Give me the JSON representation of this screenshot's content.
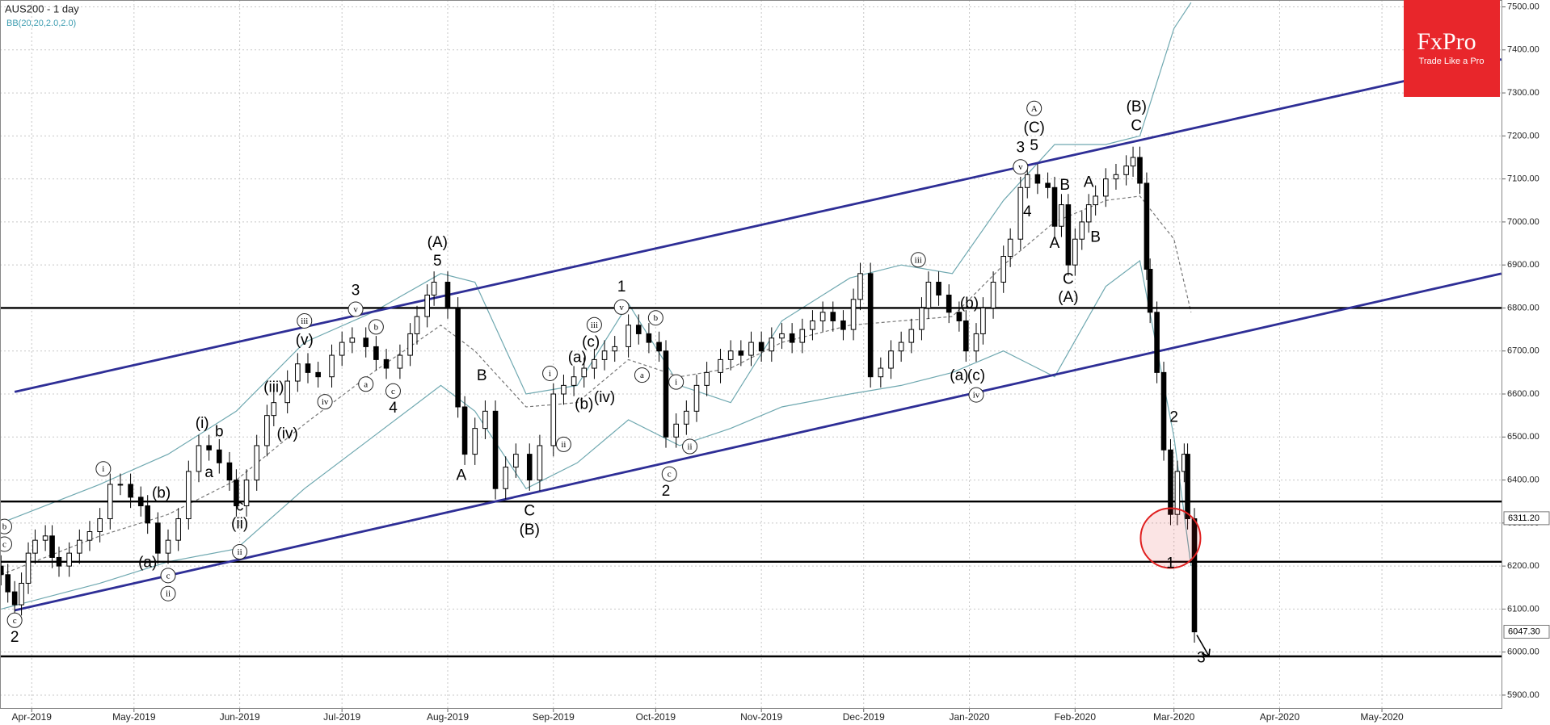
{
  "chart_data": {
    "type": "candlestick",
    "title": "AUS200 - 1 day",
    "subtitle": "BB(20,20,2.0,2.0)",
    "up_color": "#ffffff",
    "down_color": "#000000",
    "x": [
      -9,
      -7,
      -5,
      -3,
      -1,
      1,
      4,
      6,
      8,
      11,
      14,
      17,
      20,
      23,
      26,
      29,
      32,
      34,
      37,
      40,
      43,
      46,
      49,
      52,
      55,
      58,
      60,
      63,
      66,
      69,
      71,
      75,
      78,
      81,
      84,
      88,
      91,
      94,
      98,
      101,
      104,
      108,
      111,
      113,
      116,
      118,
      122,
      125,
      127,
      130,
      133,
      136,
      139,
      142,
      146,
      149,
      153,
      156,
      159,
      162,
      165,
      168,
      171,
      175,
      178,
      181,
      184,
      186,
      189,
      192,
      195,
      198,
      202,
      205,
      208,
      211,
      214,
      217,
      220,
      223,
      226,
      229,
      232,
      235,
      238,
      241,
      243,
      246,
      249,
      252,
      255,
      258,
      261,
      263,
      266,
      269,
      272,
      274,
      277,
      279,
      282,
      285,
      287,
      290,
      292,
      295,
      298,
      300,
      302,
      304,
      306,
      308,
      310,
      312,
      315,
      318,
      321,
      323,
      325,
      327,
      328,
      330,
      332,
      334,
      336,
      338,
      339,
      341
    ],
    "open": [
      6200,
      6180,
      6140,
      6110,
      6160,
      6230,
      6260,
      6270,
      6220,
      6200,
      6230,
      6260,
      6280,
      6310,
      6390,
      6390,
      6360,
      6340,
      6300,
      6230,
      6260,
      6310,
      6420,
      6480,
      6470,
      6440,
      6400,
      6340,
      6400,
      6480,
      6550,
      6580,
      6630,
      6670,
      6650,
      6640,
      6690,
      6720,
      6730,
      6710,
      6680,
      6660,
      6690,
      6740,
      6780,
      6830,
      6860,
      6800,
      6570,
      6460,
      6520,
      6560,
      6380,
      6430,
      6460,
      6400,
      6480,
      6600,
      6620,
      6640,
      6660,
      6680,
      6700,
      6710,
      6760,
      6740,
      6720,
      6700,
      6500,
      6530,
      6560,
      6620,
      6650,
      6680,
      6700,
      6690,
      6720,
      6700,
      6730,
      6740,
      6720,
      6750,
      6770,
      6790,
      6770,
      6750,
      6820,
      6880,
      6640,
      6660,
      6700,
      6720,
      6750,
      6800,
      6860,
      6830,
      6790,
      6770,
      6700,
      6740,
      6800,
      6860,
      6920,
      6960,
      7080,
      7110,
      7090,
      7080,
      6990,
      7040,
      6900,
      6960,
      7000,
      7040,
      7060,
      7100,
      7110,
      7130,
      7150,
      7090,
      6890,
      6790,
      6650,
      6470,
      6320,
      6420,
      6460,
      6310
    ],
    "high": [
      6225,
      6205,
      6165,
      6185,
      6255,
      6285,
      6295,
      6295,
      6245,
      6255,
      6285,
      6305,
      6335,
      6415,
      6415,
      6415,
      6385,
      6365,
      6325,
      6285,
      6335,
      6445,
      6505,
      6505,
      6495,
      6465,
      6425,
      6425,
      6505,
      6575,
      6605,
      6655,
      6695,
      6695,
      6675,
      6715,
      6745,
      6755,
      6755,
      6735,
      6705,
      6715,
      6765,
      6805,
      6855,
      6885,
      6885,
      6825,
      6595,
      6545,
      6585,
      6585,
      6455,
      6485,
      6485,
      6505,
      6625,
      6645,
      6665,
      6685,
      6705,
      6725,
      6735,
      6785,
      6785,
      6765,
      6745,
      6725,
      6555,
      6585,
      6645,
      6675,
      6705,
      6725,
      6725,
      6745,
      6745,
      6755,
      6765,
      6765,
      6775,
      6795,
      6815,
      6815,
      6795,
      6845,
      6905,
      6905,
      6685,
      6725,
      6745,
      6775,
      6825,
      6885,
      6885,
      6855,
      6815,
      6795,
      6765,
      6825,
      6885,
      6945,
      6985,
      7105,
      7135,
      7135,
      7115,
      7105,
      7065,
      7065,
      6985,
      7025,
      7065,
      7085,
      7125,
      7135,
      7155,
      7175,
      7175,
      7115,
      6915,
      6815,
      6675,
      6495,
      6445,
      6485,
      6485,
      6335
    ],
    "low": [
      6155,
      6115,
      6085,
      6085,
      6135,
      6205,
      6235,
      6195,
      6175,
      6175,
      6205,
      6235,
      6255,
      6285,
      6365,
      6335,
      6315,
      6275,
      6205,
      6205,
      6235,
      6285,
      6395,
      6445,
      6415,
      6375,
      6315,
      6315,
      6375,
      6455,
      6525,
      6555,
      6605,
      6625,
      6615,
      6615,
      6665,
      6695,
      6685,
      6655,
      6635,
      6635,
      6665,
      6715,
      6755,
      6805,
      6775,
      6545,
      6435,
      6435,
      6495,
      6355,
      6355,
      6405,
      6375,
      6375,
      6455,
      6575,
      6595,
      6615,
      6635,
      6655,
      6675,
      6685,
      6715,
      6695,
      6675,
      6475,
      6475,
      6505,
      6535,
      6595,
      6625,
      6655,
      6665,
      6665,
      6675,
      6675,
      6705,
      6695,
      6695,
      6725,
      6745,
      6745,
      6725,
      6725,
      6795,
      6615,
      6615,
      6635,
      6675,
      6695,
      6725,
      6775,
      6805,
      6765,
      6745,
      6675,
      6675,
      6715,
      6775,
      6835,
      6895,
      6935,
      7055,
      7065,
      7055,
      6965,
      6965,
      6875,
      6875,
      6935,
      6975,
      7015,
      7035,
      7075,
      7085,
      7105,
      7065,
      6865,
      6765,
      6625,
      6445,
      6295,
      6295,
      6395,
      6285,
      6022
    ],
    "close": [
      6180,
      6140,
      6110,
      6160,
      6230,
      6260,
      6270,
      6220,
      6200,
      6230,
      6260,
      6280,
      6310,
      6390,
      6390,
      6360,
      6340,
      6300,
      6230,
      6260,
      6310,
      6420,
      6480,
      6470,
      6440,
      6400,
      6340,
      6400,
      6480,
      6550,
      6580,
      6630,
      6670,
      6650,
      6640,
      6690,
      6720,
      6730,
      6710,
      6680,
      6660,
      6690,
      6740,
      6780,
      6830,
      6860,
      6800,
      6570,
      6460,
      6520,
      6560,
      6380,
      6430,
      6460,
      6400,
      6480,
      6600,
      6620,
      6640,
      6660,
      6680,
      6700,
      6710,
      6760,
      6740,
      6720,
      6700,
      6500,
      6530,
      6560,
      6620,
      6650,
      6680,
      6700,
      6690,
      6720,
      6700,
      6730,
      6740,
      6720,
      6750,
      6770,
      6790,
      6770,
      6750,
      6820,
      6880,
      6640,
      6660,
      6700,
      6720,
      6750,
      6800,
      6860,
      6830,
      6790,
      6770,
      6700,
      6740,
      6800,
      6860,
      6920,
      6960,
      7080,
      7110,
      7090,
      7080,
      6990,
      7040,
      6900,
      6960,
      7000,
      7040,
      7060,
      7100,
      7110,
      7130,
      7150,
      7090,
      6890,
      6790,
      6650,
      6470,
      6320,
      6420,
      6460,
      6310,
      6047
    ],
    "xlim": [
      -9.3,
      431.3
    ],
    "ylim": [
      5868,
      7516
    ],
    "grid": true,
    "xticks": [
      {
        "value": 0,
        "label": "Apr-2019"
      },
      {
        "value": 30,
        "label": "May-2019"
      },
      {
        "value": 61,
        "label": "Jun-2019"
      },
      {
        "value": 91,
        "label": "Jul-2019"
      },
      {
        "value": 122,
        "label": "Aug-2019"
      },
      {
        "value": 153,
        "label": "Sep-2019"
      },
      {
        "value": 183,
        "label": "Oct-2019"
      },
      {
        "value": 214,
        "label": "Nov-2019"
      },
      {
        "value": 244,
        "label": "Dec-2019"
      },
      {
        "value": 275,
        "label": "Jan-2020"
      },
      {
        "value": 306,
        "label": "Feb-2020"
      },
      {
        "value": 335,
        "label": "Mar-2020"
      },
      {
        "value": 366,
        "label": "Apr-2020"
      },
      {
        "value": 396,
        "label": "May-2020"
      }
    ],
    "yticks": [
      {
        "value": 5900,
        "label": "5900.00"
      },
      {
        "value": 6000,
        "label": "6000.00"
      },
      {
        "value": 6100,
        "label": "6100.00"
      },
      {
        "value": 6200,
        "label": "6200.00"
      },
      {
        "value": 6300,
        "label": "6300.00"
      },
      {
        "value": 6400,
        "label": "6400.00"
      },
      {
        "value": 6500,
        "label": "6500.00"
      },
      {
        "value": 6600,
        "label": "6600.00"
      },
      {
        "value": 6700,
        "label": "6700.00"
      },
      {
        "value": 6800,
        "label": "6800.00"
      },
      {
        "value": 6900,
        "label": "6900.00"
      },
      {
        "value": 7000,
        "label": "7000.00"
      },
      {
        "value": 7100,
        "label": "7100.00"
      },
      {
        "value": 7200,
        "label": "7200.00"
      },
      {
        "value": 7300,
        "label": "7300.00"
      },
      {
        "value": 7400,
        "label": "7400.00"
      },
      {
        "value": 7500,
        "label": "7500.00"
      }
    ],
    "bands": {
      "color": "#6fa8b0",
      "x": [
        -9,
        20,
        40,
        60,
        80,
        100,
        120,
        130,
        145,
        160,
        175,
        190,
        205,
        220,
        240,
        255,
        270,
        285,
        300,
        315,
        325,
        335,
        340
      ],
      "upper": [
        6300,
        6390,
        6460,
        6560,
        6720,
        6790,
        6880,
        6860,
        6600,
        6620,
        6810,
        6620,
        6580,
        6770,
        6870,
        6900,
        6880,
        7050,
        7180,
        7180,
        7200,
        7450,
        7510
      ],
      "middle": [
        6180,
        6270,
        6320,
        6400,
        6530,
        6650,
        6760,
        6700,
        6570,
        6580,
        6680,
        6640,
        6660,
        6720,
        6760,
        6770,
        6780,
        6900,
        7000,
        7050,
        7060,
        6960,
        6790
      ],
      "lower": [
        6100,
        6160,
        6210,
        6240,
        6380,
        6500,
        6620,
        6560,
        6380,
        6440,
        6540,
        6480,
        6520,
        6570,
        6600,
        6620,
        6650,
        6700,
        6640,
        6850,
        6910,
        6500,
        6200
      ]
    },
    "trend_color": "#2e2e96",
    "trend_lines": [
      {
        "x": [
          -5,
          431
        ],
        "y": [
          6605,
          7378
        ]
      },
      {
        "x": [
          -5,
          431
        ],
        "y": [
          6097,
          6880
        ]
      }
    ],
    "levels": [
      6800,
      6350,
      6210,
      5990
    ],
    "price_labels": [
      {
        "value": 6311.2,
        "label": "6311.20"
      },
      {
        "value": 6047.3,
        "label": "6047.30"
      }
    ],
    "highlight": {
      "x": 334,
      "y": 6265,
      "color": "#e02020"
    },
    "wave_labels": [
      {
        "text": "c",
        "x": -5,
        "y": 6074,
        "circled": true
      },
      {
        "text": "2",
        "x": -5,
        "y": 6033,
        "circled": false
      },
      {
        "text": "b",
        "x": -8,
        "y": 6292,
        "circled": true
      },
      {
        "text": "c",
        "x": -8,
        "y": 6251,
        "circled": true
      },
      {
        "text": "i",
        "x": 21,
        "y": 6426,
        "circled": true
      },
      {
        "text": "(a)",
        "x": 34,
        "y": 6207,
        "circled": false
      },
      {
        "text": "(b)",
        "x": 38,
        "y": 6368,
        "circled": false
      },
      {
        "text": "c",
        "x": 40,
        "y": 6178,
        "circled": true
      },
      {
        "text": "ii",
        "x": 40,
        "y": 6136,
        "circled": true
      },
      {
        "text": "(i)",
        "x": 50,
        "y": 6531,
        "circled": false
      },
      {
        "text": "b",
        "x": 55,
        "y": 6511,
        "circled": false
      },
      {
        "text": "a",
        "x": 52,
        "y": 6416,
        "circled": false
      },
      {
        "text": "c",
        "x": 61,
        "y": 6338,
        "circled": false
      },
      {
        "text": "(ii)",
        "x": 61,
        "y": 6297,
        "circled": false
      },
      {
        "text": "ii",
        "x": 61,
        "y": 6233,
        "circled": true
      },
      {
        "text": "(iii)",
        "x": 71,
        "y": 6614,
        "circled": false
      },
      {
        "text": "(iv)",
        "x": 75,
        "y": 6506,
        "circled": false
      },
      {
        "text": "iii",
        "x": 80,
        "y": 6770,
        "circled": true
      },
      {
        "text": "(v)",
        "x": 80,
        "y": 6724,
        "circled": false
      },
      {
        "text": "iv",
        "x": 86,
        "y": 6582,
        "circled": true
      },
      {
        "text": "3",
        "x": 95,
        "y": 6839,
        "circled": false
      },
      {
        "text": "v",
        "x": 95,
        "y": 6797,
        "circled": true
      },
      {
        "text": "b",
        "x": 101,
        "y": 6756,
        "circled": true
      },
      {
        "text": "a",
        "x": 98,
        "y": 6623,
        "circled": true
      },
      {
        "text": "c",
        "x": 106,
        "y": 6607,
        "circled": true
      },
      {
        "text": "4",
        "x": 106,
        "y": 6566,
        "circled": false
      },
      {
        "text": "(A)",
        "x": 119,
        "y": 6951,
        "circled": false
      },
      {
        "text": "5",
        "x": 119,
        "y": 6908,
        "circled": false
      },
      {
        "text": "A",
        "x": 126,
        "y": 6410,
        "circled": false
      },
      {
        "text": "B",
        "x": 132,
        "y": 6641,
        "circled": false
      },
      {
        "text": "C",
        "x": 146,
        "y": 6327,
        "circled": false
      },
      {
        "text": "(B)",
        "x": 146,
        "y": 6283,
        "circled": false
      },
      {
        "text": "i",
        "x": 152,
        "y": 6648,
        "circled": true
      },
      {
        "text": "ii",
        "x": 156,
        "y": 6483,
        "circled": true
      },
      {
        "text": "(a)",
        "x": 160,
        "y": 6684,
        "circled": false
      },
      {
        "text": "(b)",
        "x": 162,
        "y": 6575,
        "circled": false
      },
      {
        "text": "(c)",
        "x": 164,
        "y": 6719,
        "circled": false
      },
      {
        "text": "(iv)",
        "x": 168,
        "y": 6591,
        "circled": false
      },
      {
        "text": "iii",
        "x": 165,
        "y": 6761,
        "circled": true
      },
      {
        "text": "1",
        "x": 173,
        "y": 6848,
        "circled": false
      },
      {
        "text": "v",
        "x": 173,
        "y": 6802,
        "circled": true
      },
      {
        "text": "b",
        "x": 183,
        "y": 6777,
        "circled": true
      },
      {
        "text": "a",
        "x": 179,
        "y": 6644,
        "circled": true
      },
      {
        "text": "c",
        "x": 187,
        "y": 6414,
        "circled": true
      },
      {
        "text": "2",
        "x": 186,
        "y": 6373,
        "circled": false
      },
      {
        "text": "i",
        "x": 189,
        "y": 6628,
        "circled": true
      },
      {
        "text": "ii",
        "x": 193,
        "y": 6478,
        "circled": true
      },
      {
        "text": "iii",
        "x": 260,
        "y": 6912,
        "circled": true
      },
      {
        "text": "(b)",
        "x": 275,
        "y": 6809,
        "circled": false
      },
      {
        "text": "(a)",
        "x": 272,
        "y": 6641,
        "circled": false
      },
      {
        "text": "(c)",
        "x": 277,
        "y": 6641,
        "circled": false
      },
      {
        "text": "iv",
        "x": 277,
        "y": 6598,
        "circled": true
      },
      {
        "text": "3",
        "x": 290,
        "y": 7172,
        "circled": false
      },
      {
        "text": "v",
        "x": 290,
        "y": 7128,
        "circled": true
      },
      {
        "text": "5",
        "x": 294,
        "y": 7176,
        "circled": false
      },
      {
        "text": "A",
        "x": 294,
        "y": 7264,
        "circled": true
      },
      {
        "text": "(C)",
        "x": 294,
        "y": 7218,
        "circled": false
      },
      {
        "text": "4",
        "x": 292,
        "y": 7022,
        "circled": false
      },
      {
        "text": "B",
        "x": 303,
        "y": 7084,
        "circled": false
      },
      {
        "text": "A",
        "x": 300,
        "y": 6949,
        "circled": false
      },
      {
        "text": "C",
        "x": 304,
        "y": 6866,
        "circled": false
      },
      {
        "text": "(A)",
        "x": 304,
        "y": 6823,
        "circled": false
      },
      {
        "text": "A",
        "x": 310,
        "y": 7091,
        "circled": false
      },
      {
        "text": "B",
        "x": 312,
        "y": 6963,
        "circled": false
      },
      {
        "text": "(B)",
        "x": 324,
        "y": 7266,
        "circled": false
      },
      {
        "text": "C",
        "x": 324,
        "y": 7222,
        "circled": false
      },
      {
        "text": "2",
        "x": 335,
        "y": 6545,
        "circled": false
      },
      {
        "text": "1",
        "x": 334,
        "y": 6205,
        "circled": false
      },
      {
        "text": "3",
        "x": 343,
        "y": 5985,
        "circled": false
      }
    ]
  },
  "logo": {
    "name": "FxPro",
    "tagline": "Trade Like a Pro"
  }
}
